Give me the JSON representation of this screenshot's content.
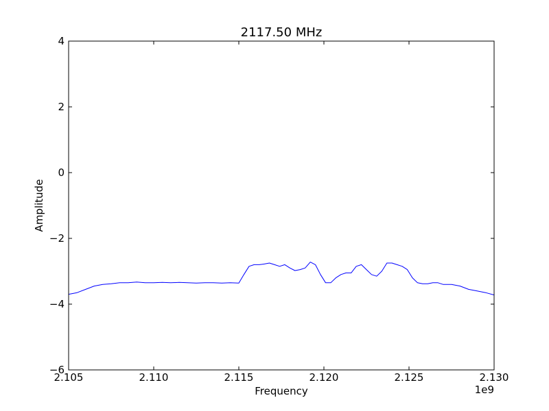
{
  "chart_data": {
    "type": "line",
    "title": "2117.50 MHz",
    "xlabel": "Frequency",
    "ylabel": "Amplitude",
    "x_offset_label": "1e9",
    "xlim": [
      2.105,
      2.13
    ],
    "ylim": [
      -6,
      4
    ],
    "x_ticks": [
      2.105,
      2.11,
      2.115,
      2.12,
      2.125,
      2.13
    ],
    "x_tick_labels": [
      "2.105",
      "2.110",
      "2.115",
      "2.120",
      "2.125",
      "2.130"
    ],
    "y_ticks": [
      -6,
      -4,
      -2,
      0,
      2,
      4
    ],
    "y_tick_labels": [
      "−6",
      "−4",
      "−2",
      "0",
      "2",
      "4"
    ],
    "grid": false,
    "line_color": "#0000ff",
    "series": [
      {
        "x": [
          2.105,
          2.1055,
          2.106,
          2.1065,
          2.107,
          2.1075,
          2.108,
          2.1085,
          2.109,
          2.1095,
          2.11,
          2.1105,
          2.111,
          2.1115,
          2.112,
          2.1125,
          2.113,
          2.1135,
          2.114,
          2.1145,
          2.115,
          2.1153,
          2.1156,
          2.1159,
          2.1162,
          2.1165,
          2.1168,
          2.1171,
          2.1174,
          2.1177,
          2.118,
          2.1183,
          2.1186,
          2.1189,
          2.1192,
          2.1195,
          2.1198,
          2.1201,
          2.1204,
          2.1207,
          2.121,
          2.1213,
          2.1216,
          2.1219,
          2.1222,
          2.1225,
          2.1228,
          2.1231,
          2.1234,
          2.1237,
          2.124,
          2.1243,
          2.1246,
          2.1249,
          2.1252,
          2.1255,
          2.1258,
          2.1261,
          2.1264,
          2.1267,
          2.127,
          2.1275,
          2.128,
          2.1285,
          2.129,
          2.1295,
          2.13
        ],
        "y": [
          -3.7,
          -3.65,
          -3.55,
          -3.45,
          -3.4,
          -3.38,
          -3.35,
          -3.35,
          -3.33,
          -3.35,
          -3.35,
          -3.34,
          -3.35,
          -3.34,
          -3.35,
          -3.36,
          -3.35,
          -3.35,
          -3.36,
          -3.35,
          -3.36,
          -3.1,
          -2.85,
          -2.8,
          -2.8,
          -2.78,
          -2.75,
          -2.8,
          -2.85,
          -2.8,
          -2.9,
          -2.98,
          -2.95,
          -2.9,
          -2.72,
          -2.8,
          -3.1,
          -3.35,
          -3.35,
          -3.2,
          -3.1,
          -3.05,
          -3.05,
          -2.85,
          -2.8,
          -2.95,
          -3.1,
          -3.15,
          -3.0,
          -2.75,
          -2.75,
          -2.8,
          -2.85,
          -2.95,
          -3.2,
          -3.35,
          -3.38,
          -3.38,
          -3.35,
          -3.35,
          -3.4,
          -3.4,
          -3.45,
          -3.55,
          -3.6,
          -3.65,
          -3.72
        ]
      }
    ]
  }
}
